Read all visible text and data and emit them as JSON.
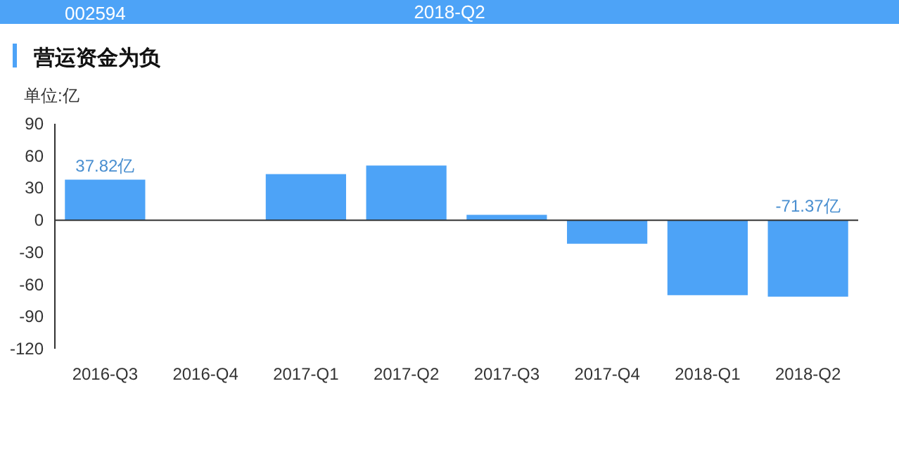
{
  "chart_data": {
    "type": "bar",
    "title": "营运资金为负",
    "subtitle": "单位:亿",
    "annotations": [
      "002594",
      "2018-Q2"
    ],
    "categories": [
      "2016-Q3",
      "2016-Q4",
      "2017-Q1",
      "2017-Q2",
      "2017-Q3",
      "2017-Q4",
      "2018-Q1",
      "2018-Q2"
    ],
    "values": [
      37.82,
      0,
      43,
      51,
      5,
      -22,
      -70,
      -71.37
    ],
    "value_labels": [
      "37.82亿",
      null,
      null,
      null,
      null,
      null,
      null,
      "-71.37亿"
    ],
    "color": "#4da3f7",
    "ylim": [
      -120,
      90
    ],
    "yticks": [
      -120,
      -90,
      -60,
      -30,
      0,
      30,
      60,
      90
    ]
  }
}
